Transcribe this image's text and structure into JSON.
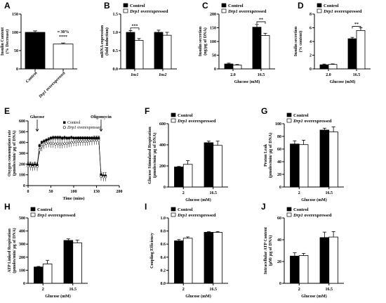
{
  "chart_data": [
    {
      "id": "A",
      "type": "bar",
      "panel_label": "A",
      "ylabel": "Insulin Content (% Decrease)",
      "categories": [
        "Control",
        "Drp1 overexpressed"
      ],
      "categories_italic_prefix": [
        false,
        true
      ],
      "rotate_categories": true,
      "values": [
        100,
        68
      ],
      "errors": [
        4,
        3
      ],
      "fills": [
        "#000000",
        "#ffffff"
      ],
      "ylim": [
        0,
        150
      ],
      "yticks": [
        0,
        50,
        100,
        150
      ],
      "annotations": [
        {
          "bar": 1,
          "lines": [
            "≈ 30%",
            "****"
          ]
        }
      ]
    },
    {
      "id": "B",
      "type": "bar",
      "panel_label": "B",
      "ylabel": "mRNA expression (fold induction)",
      "xlabel": "",
      "categories": [
        "Ins1",
        "Ins2"
      ],
      "categories_italic": true,
      "series": [
        {
          "name": "Control",
          "values": [
            1.0,
            1.0
          ],
          "errors": [
            0.05,
            0.06
          ],
          "fill": "#000000"
        },
        {
          "name": "Drp1 overexpressed",
          "values": [
            0.78,
            0.92
          ],
          "errors": [
            0.05,
            0.08
          ],
          "fill": "#ffffff"
        }
      ],
      "ylim": [
        0,
        1.5
      ],
      "yticks": [
        "0.0",
        "0.5",
        "1.0",
        "1.5"
      ],
      "legend": "top-left",
      "sig": [
        {
          "group": 0,
          "text": "***",
          "y": 1.12
        }
      ]
    },
    {
      "id": "C",
      "type": "bar",
      "panel_label": "C",
      "ylabel": "Insulin secretion (ng/µg of DNA)",
      "xlabel": "Glucose (mM)",
      "categories": [
        "2.0",
        "16.5"
      ],
      "series": [
        {
          "name": "Control",
          "values": [
            18,
            152
          ],
          "errors": [
            3,
            10
          ],
          "fill": "#000000"
        },
        {
          "name": "Drp1 overexpressed",
          "values": [
            14,
            122
          ],
          "errors": [
            2,
            8
          ],
          "fill": "#ffffff"
        }
      ],
      "ylim": [
        0,
        200
      ],
      "yticks": [
        0,
        50,
        100,
        150,
        200
      ],
      "legend": "top-left",
      "sig": [
        {
          "group": 1,
          "text": "**",
          "y": 172
        }
      ]
    },
    {
      "id": "D",
      "type": "bar",
      "panel_label": "D",
      "ylabel": "Insulin secretion (% content)",
      "xlabel": "Glucose (mM)",
      "categories": [
        "2.0",
        "16.5"
      ],
      "series": [
        {
          "name": "Control",
          "values": [
            0.6,
            4.4
          ],
          "errors": [
            0.1,
            0.2
          ],
          "fill": "#000000"
        },
        {
          "name": "Drp1 overexpressed",
          "values": [
            0.65,
            5.6
          ],
          "errors": [
            0.08,
            0.4
          ],
          "fill": "#ffffff"
        }
      ],
      "ylim": [
        0,
        8
      ],
      "yticks": [
        0,
        2,
        4,
        6,
        8
      ],
      "legend": "top-left",
      "sig": [
        {
          "group": 1,
          "text": "**",
          "y": 6.2
        }
      ]
    },
    {
      "id": "E",
      "type": "line",
      "panel_label": "E",
      "ylabel": "Oxygen consumption rate (pmoles/min/ µg of DNA)",
      "xlabel": "Time (mins)",
      "xlim": [
        0,
        200
      ],
      "xticks": [
        0,
        50,
        100,
        150,
        200
      ],
      "ylim": [
        0,
        600
      ],
      "yticks": [
        0,
        100,
        200,
        300,
        400,
        500,
        600
      ],
      "legend": "top-center",
      "events": [
        {
          "label": "Glucose",
          "x": 20
        },
        {
          "label": "Oligomycin",
          "x": 160
        }
      ],
      "series": [
        {
          "name": "Control",
          "marker": "square-filled",
          "x": [
            0,
            5,
            10,
            15,
            20,
            25,
            30,
            35,
            40,
            45,
            50,
            55,
            60,
            65,
            70,
            75,
            80,
            85,
            90,
            95,
            100,
            105,
            110,
            115,
            120,
            125,
            130,
            135,
            140,
            145,
            150,
            155,
            160,
            165,
            170
          ],
          "y": [
            195,
            195,
            190,
            195,
            190,
            370,
            400,
            410,
            420,
            430,
            440,
            445,
            445,
            445,
            445,
            440,
            445,
            440,
            440,
            445,
            440,
            440,
            440,
            440,
            440,
            440,
            440,
            440,
            440,
            440,
            440,
            440,
            100,
            90,
            88
          ],
          "err": 15
        },
        {
          "name": "Drp1 overexpressed",
          "name_italic_prefix": true,
          "marker": "circle-open",
          "x": [
            0,
            5,
            10,
            15,
            20,
            25,
            30,
            35,
            40,
            45,
            50,
            55,
            60,
            65,
            70,
            75,
            80,
            85,
            90,
            95,
            100,
            105,
            110,
            115,
            120,
            125,
            130,
            135,
            140,
            145,
            150,
            155,
            160,
            165,
            170
          ],
          "y": [
            180,
            180,
            175,
            180,
            175,
            330,
            360,
            380,
            390,
            395,
            390,
            390,
            385,
            390,
            385,
            385,
            390,
            390,
            395,
            400,
            405,
            405,
            410,
            410,
            410,
            410,
            410,
            415,
            415,
            420,
            420,
            420,
            85,
            80,
            80
          ],
          "err": 40
        }
      ]
    },
    {
      "id": "F",
      "type": "bar",
      "panel_label": "F",
      "ylabel": "Glucose Stimulated Respiration (pmoles/min/ µg of DNA)",
      "xlabel": "Glucose (mM)",
      "categories": [
        "2",
        "16.5"
      ],
      "series": [
        {
          "name": "Control",
          "values": [
            190,
            420
          ],
          "errors": [
            5,
            15
          ],
          "fill": "#000000"
        },
        {
          "name": "Drp1 overexpressed",
          "values": [
            215,
            395
          ],
          "errors": [
            35,
            40
          ],
          "fill": "#ffffff"
        }
      ],
      "ylim": [
        0,
        600
      ],
      "yticks": [
        0,
        200,
        400,
        600
      ],
      "legend": "top-left"
    },
    {
      "id": "G",
      "type": "bar",
      "panel_label": "G",
      "ylabel": "Proton Leak (pmoles/min/ µg of DNA)",
      "xlabel": "Glucose (mM)",
      "categories": [
        "2",
        "16.5"
      ],
      "series": [
        {
          "name": "Control",
          "values": [
            68,
            90
          ],
          "errors": [
            5,
            3
          ],
          "fill": "#000000"
        },
        {
          "name": "Drp1 overexpressed",
          "values": [
            67,
            87
          ],
          "errors": [
            7,
            8
          ],
          "fill": "#ffffff"
        }
      ],
      "ylim": [
        0,
        100
      ],
      "yticks": [
        0,
        20,
        40,
        60,
        80,
        100
      ],
      "legend": "top-left"
    },
    {
      "id": "H",
      "type": "bar",
      "panel_label": "H",
      "ylabel": "ATP Linked Respiration (pmoles/min/ µg of DNA)",
      "xlabel": "Glucose (mM)",
      "categories": [
        "2",
        "16.5"
      ],
      "series": [
        {
          "name": "Control",
          "values": [
            125,
            328
          ],
          "errors": [
            4,
            12
          ],
          "fill": "#000000"
        },
        {
          "name": "Drp1 overexpressed",
          "values": [
            148,
            310
          ],
          "errors": [
            28,
            20
          ],
          "fill": "#ffffff"
        }
      ],
      "ylim": [
        0,
        500
      ],
      "yticks": [
        0,
        100,
        200,
        300,
        400,
        500
      ],
      "legend": "top-left"
    },
    {
      "id": "I",
      "type": "bar",
      "panel_label": "I",
      "ylabel": "Coupling Efficiency",
      "xlabel": "Glucose (mM)",
      "categories": [
        "2",
        "16.5"
      ],
      "series": [
        {
          "name": "Control",
          "values": [
            0.65,
            0.78
          ],
          "errors": [
            0.02,
            0.01
          ],
          "fill": "#000000"
        },
        {
          "name": "Drp1 overexpressed",
          "values": [
            0.69,
            0.78
          ],
          "errors": [
            0.02,
            0.01
          ],
          "fill": "#ffffff"
        }
      ],
      "ylim": [
        0,
        1.0
      ],
      "yticks": [
        "0.0",
        "0.2",
        "0.4",
        "0.6",
        "0.8",
        "1.0"
      ],
      "legend": "top-left"
    },
    {
      "id": "J",
      "type": "bar",
      "panel_label": "J",
      "ylabel": "Intracellular ATP Content (µM/ µg of DNA)",
      "xlabel": "Glucose (mM)",
      "categories": [
        "2",
        "16.5"
      ],
      "series": [
        {
          "name": "Control",
          "values": [
            25,
            42
          ],
          "errors": [
            3,
            5
          ],
          "fill": "#000000"
        },
        {
          "name": "Drp1 overexpressed",
          "values": [
            25.5,
            42.5
          ],
          "errors": [
            2,
            5
          ],
          "fill": "#ffffff"
        }
      ],
      "ylim": [
        0,
        60
      ],
      "yticks": [
        0,
        20,
        40,
        60
      ],
      "legend": "top-left"
    }
  ]
}
